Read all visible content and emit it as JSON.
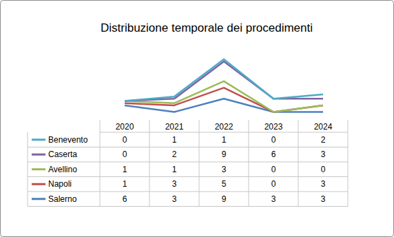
{
  "chart_data": {
    "type": "line",
    "title": "Distribuzione temporale dei procedimenti",
    "categories": [
      "2020",
      "2021",
      "2022",
      "2023",
      "2024"
    ],
    "stacked": true,
    "data_labels": false,
    "tick_labels": false,
    "grid": false,
    "series": [
      {
        "name": "Benevento",
        "color": "#4bacc6",
        "values": [
          0,
          1,
          1,
          0,
          2
        ]
      },
      {
        "name": "Caserta",
        "color": "#8064a2",
        "values": [
          0,
          2,
          9,
          6,
          3
        ]
      },
      {
        "name": "Avellino",
        "color": "#9bbb59",
        "values": [
          1,
          1,
          3,
          0,
          0
        ]
      },
      {
        "name": "Napoli",
        "color": "#c0504d",
        "values": [
          1,
          3,
          5,
          0,
          3
        ]
      },
      {
        "name": "Salerno",
        "color": "#4f81bd",
        "values": [
          6,
          3,
          9,
          3,
          3
        ]
      }
    ]
  }
}
